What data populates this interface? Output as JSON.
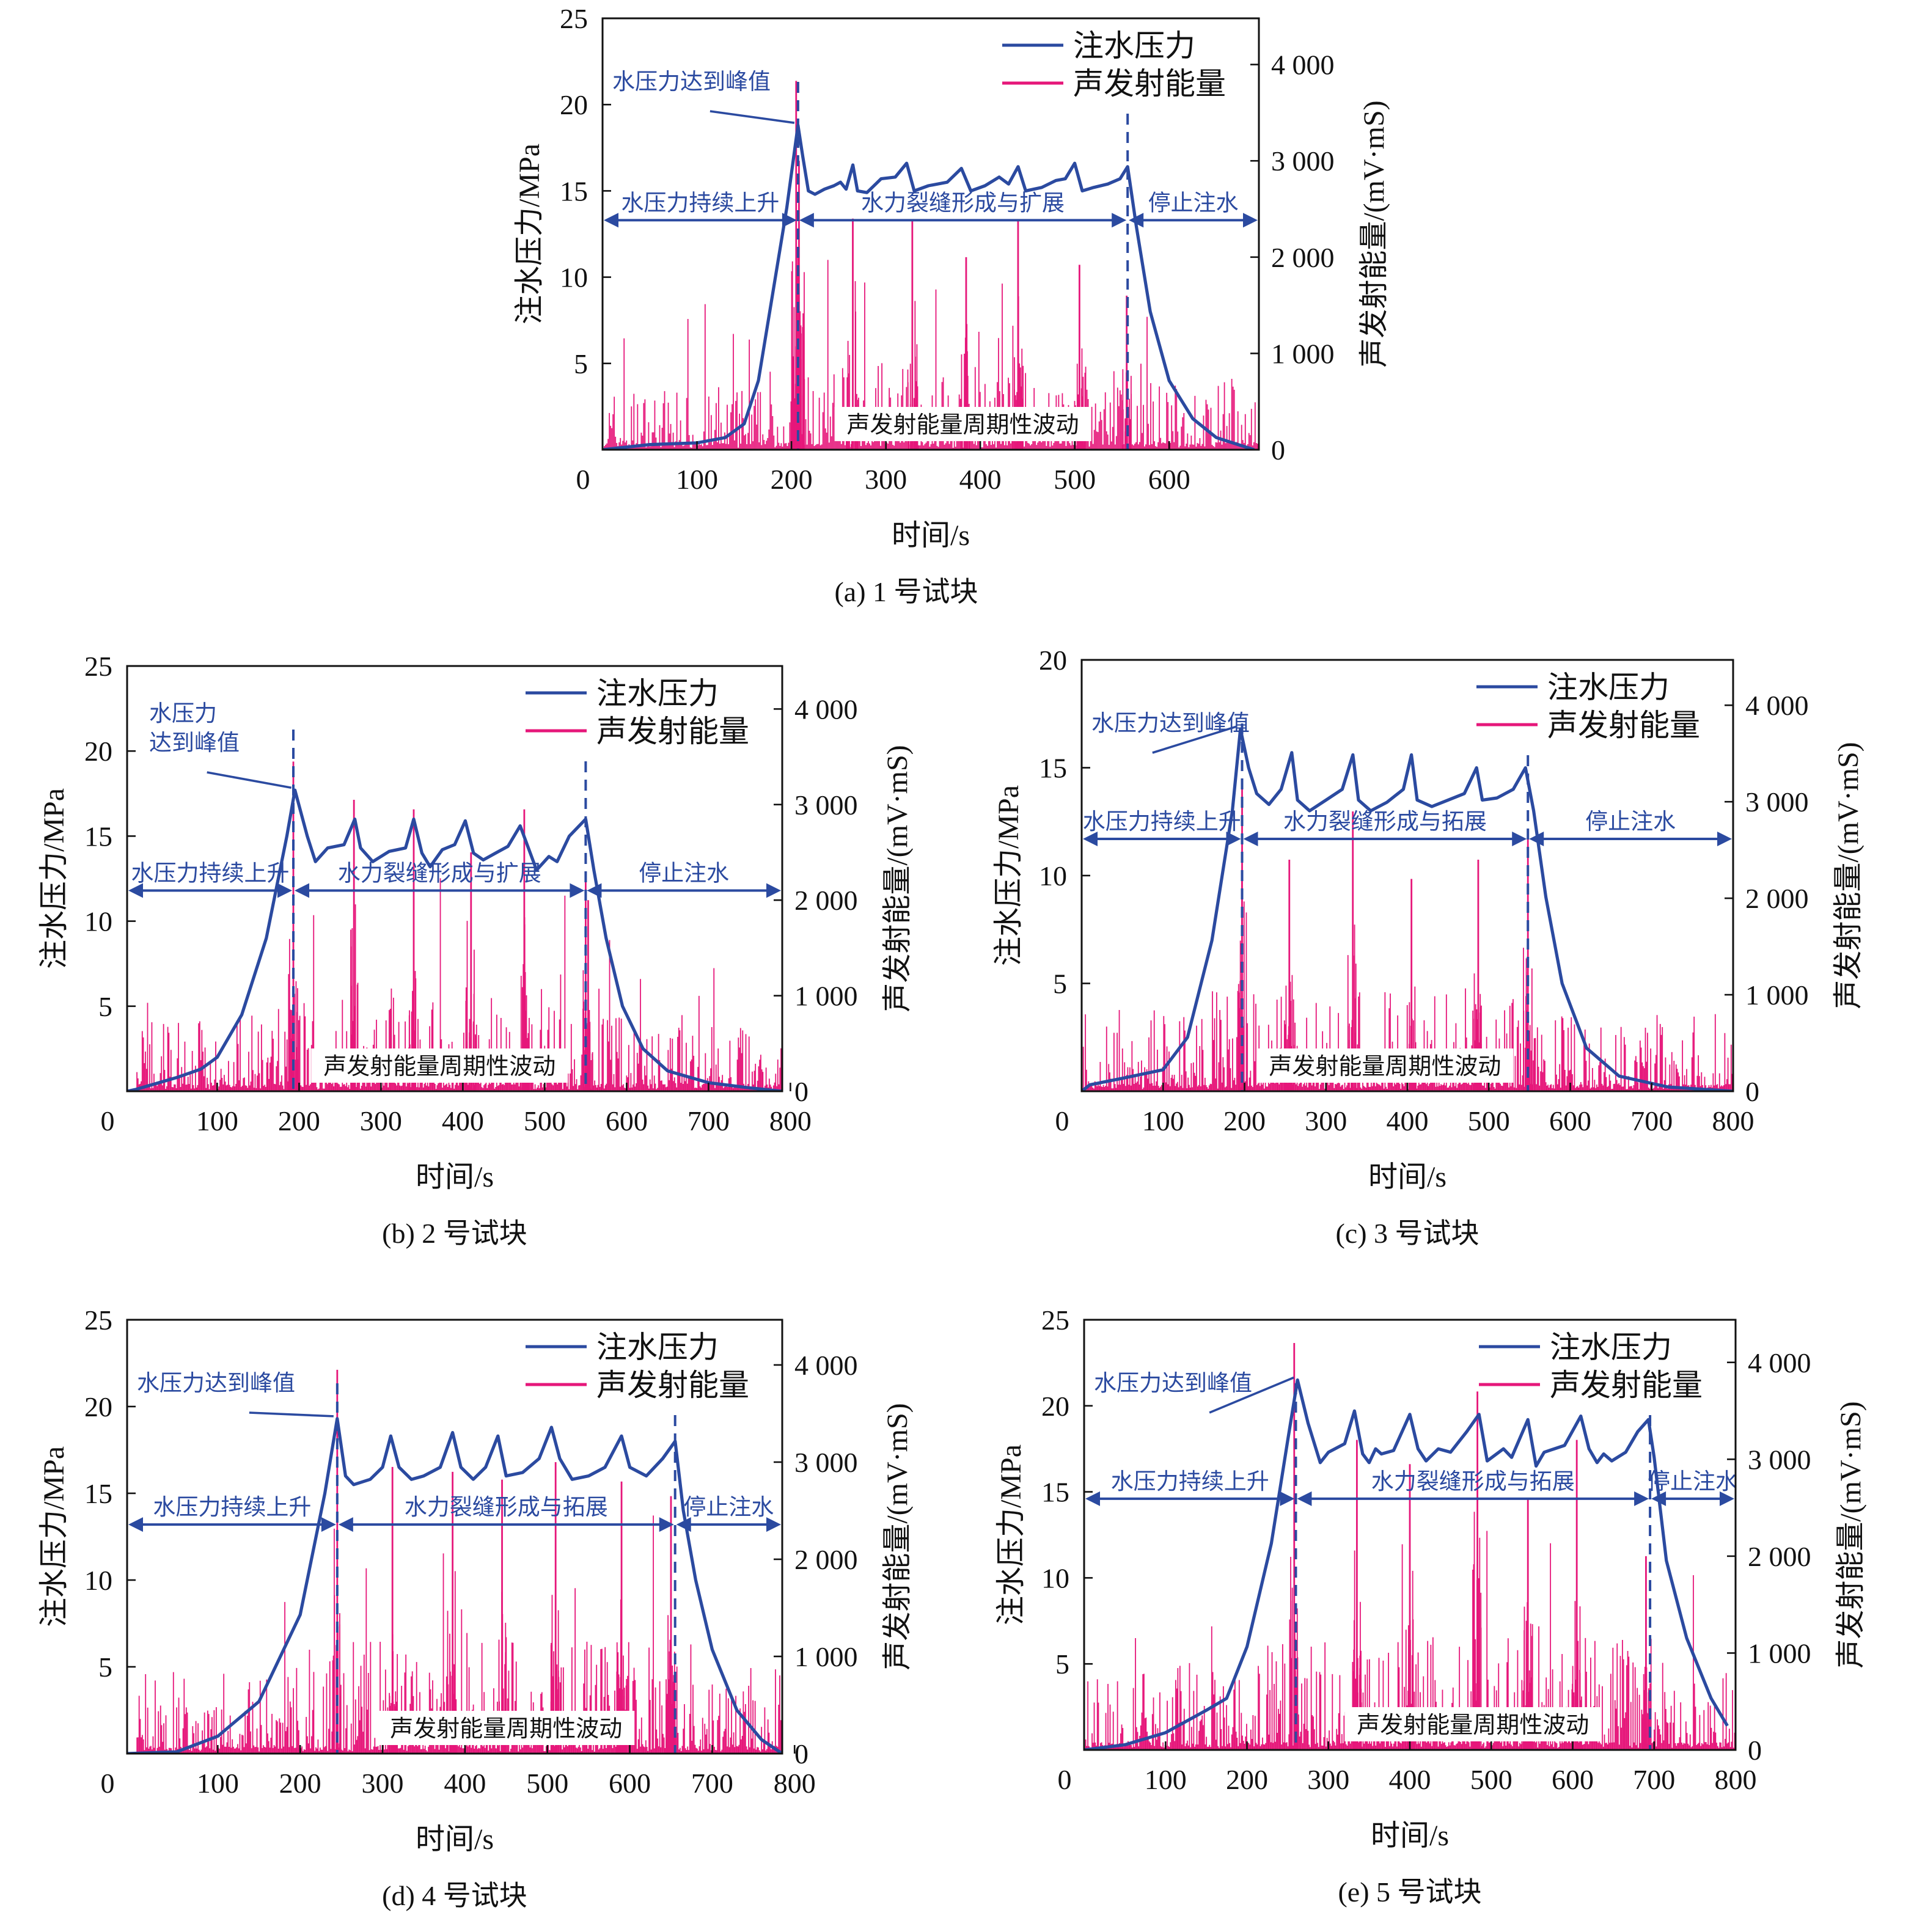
{
  "colors": {
    "pressure": "#2b4aa0",
    "energy": "#e6177a",
    "axis": "#111111"
  },
  "legend": {
    "pressure": "注水压力",
    "energy": "声发射能量"
  },
  "common": {
    "xlabel": "时间/s",
    "ylabel_left": "注水压力/MPa",
    "ylabel_right": "声发射能量/(mV·mS)",
    "band_label": "声发射能量周期性波动",
    "phase_stop": "停止注水",
    "phase_rise": "水压力持续上升"
  },
  "chart_data": [
    {
      "type": "line+bar",
      "caption": "(a) 1 号试块",
      "xlim": [
        0,
        695
      ],
      "xticks": [
        0,
        100,
        200,
        300,
        400,
        500,
        600
      ],
      "ylim_left": [
        0,
        25
      ],
      "yticks_left": [
        5,
        10,
        15,
        20,
        25
      ],
      "ylim_right": [
        0,
        4480
      ],
      "yticks_right": [
        0,
        1000,
        2000,
        3000,
        4000
      ],
      "yticks_right_labels": [
        "0",
        "1 000",
        "2 000",
        "3 000",
        "4 000"
      ],
      "peak_label": "水压力达到峰值",
      "phase_frac": "水力裂缝形成与扩展",
      "phase_arrow_level": 13.3,
      "phase_boundaries": [
        207,
        556
      ],
      "pressure": [
        [
          0,
          0
        ],
        [
          50,
          0.3
        ],
        [
          100,
          0.4
        ],
        [
          130,
          0.7
        ],
        [
          150,
          1.5
        ],
        [
          165,
          4
        ],
        [
          180,
          9
        ],
        [
          195,
          14
        ],
        [
          207,
          18.8
        ],
        [
          212,
          17
        ],
        [
          218,
          15
        ],
        [
          225,
          14.8
        ],
        [
          235,
          15.1
        ],
        [
          245,
          15.3
        ],
        [
          252,
          15.5
        ],
        [
          258,
          15.1
        ],
        [
          265,
          16.5
        ],
        [
          270,
          15
        ],
        [
          280,
          14.9
        ],
        [
          295,
          15.7
        ],
        [
          310,
          15.8
        ],
        [
          322,
          16.6
        ],
        [
          330,
          15
        ],
        [
          345,
          15.3
        ],
        [
          365,
          15.5
        ],
        [
          380,
          16.3
        ],
        [
          390,
          15
        ],
        [
          405,
          15.3
        ],
        [
          420,
          15.8
        ],
        [
          430,
          15.4
        ],
        [
          440,
          16.4
        ],
        [
          448,
          15
        ],
        [
          465,
          15.2
        ],
        [
          480,
          15.6
        ],
        [
          490,
          15.7
        ],
        [
          500,
          16.6
        ],
        [
          508,
          15
        ],
        [
          520,
          15.2
        ],
        [
          535,
          15.4
        ],
        [
          548,
          15.7
        ],
        [
          556,
          16.4
        ],
        [
          565,
          13
        ],
        [
          580,
          8
        ],
        [
          600,
          4
        ],
        [
          625,
          1.8
        ],
        [
          650,
          0.7
        ],
        [
          690,
          0
        ]
      ],
      "energy_peaks": [
        [
          205,
          3830
        ],
        [
          208,
          3000
        ],
        [
          265,
          2400
        ],
        [
          328,
          2380
        ],
        [
          385,
          2000
        ],
        [
          440,
          2380
        ],
        [
          505,
          1920
        ],
        [
          555,
          1600
        ]
      ],
      "energy_background_max": 700
    },
    {
      "type": "line+bar",
      "caption": "(b) 2 号试块",
      "xlim": [
        -10,
        790
      ],
      "xticks": [
        0,
        100,
        200,
        300,
        400,
        500,
        600,
        700,
        800
      ],
      "ylim_left": [
        0,
        25
      ],
      "yticks_left": [
        5,
        10,
        15,
        20,
        25
      ],
      "ylim_right": [
        0,
        4450
      ],
      "yticks_right": [
        0,
        1000,
        2000,
        3000,
        4000
      ],
      "yticks_right_labels": [
        "0",
        "1 000",
        "2 000",
        "3 000",
        "4 000"
      ],
      "peak_label": "水压力\n达到峰值",
      "phase_frac": "水力裂缝形成与扩展",
      "phase_arrow_level": 11.8,
      "phase_boundaries": [
        193,
        550
      ],
      "pressure": [
        [
          -10,
          0
        ],
        [
          0,
          0.1
        ],
        [
          50,
          0.8
        ],
        [
          80,
          1.3
        ],
        [
          100,
          2
        ],
        [
          130,
          4.5
        ],
        [
          160,
          9
        ],
        [
          185,
          15
        ],
        [
          195,
          17.7
        ],
        [
          210,
          15
        ],
        [
          220,
          13.5
        ],
        [
          235,
          14.3
        ],
        [
          255,
          14.5
        ],
        [
          268,
          16
        ],
        [
          275,
          14.3
        ],
        [
          290,
          13.5
        ],
        [
          310,
          14.1
        ],
        [
          330,
          14.3
        ],
        [
          340,
          16
        ],
        [
          350,
          14
        ],
        [
          360,
          13.2
        ],
        [
          375,
          14.2
        ],
        [
          390,
          14.5
        ],
        [
          403,
          15.9
        ],
        [
          413,
          14
        ],
        [
          425,
          13.6
        ],
        [
          440,
          14
        ],
        [
          455,
          14.4
        ],
        [
          470,
          15.6
        ],
        [
          480,
          14.3
        ],
        [
          490,
          13
        ],
        [
          505,
          13.8
        ],
        [
          515,
          13.5
        ],
        [
          530,
          15
        ],
        [
          550,
          16
        ],
        [
          560,
          13
        ],
        [
          575,
          9
        ],
        [
          595,
          5
        ],
        [
          620,
          2.5
        ],
        [
          650,
          1.2
        ],
        [
          700,
          0.5
        ],
        [
          750,
          0.2
        ],
        [
          790,
          0
        ]
      ],
      "energy_peaks": [
        [
          193,
          3450
        ],
        [
          267,
          3050
        ],
        [
          340,
          2950
        ],
        [
          410,
          2500
        ],
        [
          475,
          2950
        ],
        [
          550,
          2300
        ],
        [
          553,
          2000
        ]
      ],
      "energy_background_max": 800
    },
    {
      "type": "line+bar",
      "caption": "(c) 3 号试块",
      "xlim": [
        0,
        800
      ],
      "xticks": [
        0,
        100,
        200,
        300,
        400,
        500,
        600,
        700,
        800
      ],
      "ylim_left": [
        0,
        20
      ],
      "yticks_left": [
        5,
        10,
        15,
        20
      ],
      "ylim_right": [
        0,
        4470
      ],
      "yticks_right": [
        0,
        1000,
        2000,
        3000,
        4000
      ],
      "yticks_right_labels": [
        "0",
        "1 000",
        "2 000",
        "3 000",
        "4 000"
      ],
      "peak_label": "水压力达到峰值",
      "phase_frac": "水力裂缝形成与拓展",
      "phase_arrow_level": 11.7,
      "phase_boundaries": [
        197,
        548
      ],
      "pressure": [
        [
          0,
          0
        ],
        [
          10,
          0.3
        ],
        [
          50,
          0.6
        ],
        [
          100,
          1
        ],
        [
          130,
          2.5
        ],
        [
          160,
          7
        ],
        [
          185,
          13
        ],
        [
          195,
          16.8
        ],
        [
          205,
          15
        ],
        [
          215,
          13.8
        ],
        [
          230,
          13.3
        ],
        [
          245,
          14
        ],
        [
          258,
          15.7
        ],
        [
          265,
          13.5
        ],
        [
          280,
          13
        ],
        [
          300,
          13.5
        ],
        [
          320,
          14
        ],
        [
          333,
          15.6
        ],
        [
          340,
          13.5
        ],
        [
          355,
          13
        ],
        [
          375,
          13.4
        ],
        [
          395,
          14
        ],
        [
          405,
          15.6
        ],
        [
          412,
          13.5
        ],
        [
          430,
          13.2
        ],
        [
          450,
          13.5
        ],
        [
          470,
          13.8
        ],
        [
          485,
          15
        ],
        [
          492,
          13.5
        ],
        [
          510,
          13.6
        ],
        [
          530,
          14
        ],
        [
          545,
          15
        ],
        [
          555,
          13
        ],
        [
          570,
          9
        ],
        [
          590,
          5
        ],
        [
          620,
          2
        ],
        [
          660,
          0.7
        ],
        [
          720,
          0.2
        ],
        [
          800,
          0
        ]
      ],
      "energy_peaks": [
        [
          197,
          3200
        ],
        [
          255,
          2400
        ],
        [
          333,
          2900
        ],
        [
          405,
          2200
        ],
        [
          487,
          2400
        ],
        [
          548,
          2700
        ]
      ],
      "energy_background_max": 800
    },
    {
      "type": "line+bar",
      "caption": "(d) 4 号试块",
      "xlim": [
        -10,
        785
      ],
      "xticks": [
        0,
        100,
        200,
        300,
        400,
        500,
        600,
        700,
        800
      ],
      "ylim_left": [
        0,
        25
      ],
      "yticks_left": [
        5,
        10,
        15,
        20,
        25
      ],
      "ylim_right": [
        0,
        4465
      ],
      "yticks_right": [
        0,
        1000,
        2000,
        3000,
        4000
      ],
      "yticks_right_labels": [
        "0",
        "1 000",
        "2 000",
        "3 000",
        "4 000"
      ],
      "peak_label": "水压力达到峰值",
      "phase_frac": "水力裂缝形成与拓展",
      "phase_arrow_level": 13.2,
      "phase_boundaries": [
        245,
        655
      ],
      "pressure": [
        [
          -10,
          0
        ],
        [
          50,
          0.1
        ],
        [
          100,
          1
        ],
        [
          150,
          3
        ],
        [
          200,
          8
        ],
        [
          230,
          15
        ],
        [
          245,
          19.3
        ],
        [
          255,
          16
        ],
        [
          265,
          15.5
        ],
        [
          285,
          15.8
        ],
        [
          300,
          16.5
        ],
        [
          310,
          18.3
        ],
        [
          320,
          16.5
        ],
        [
          335,
          15.8
        ],
        [
          350,
          16
        ],
        [
          370,
          16.5
        ],
        [
          385,
          18.5
        ],
        [
          395,
          16.5
        ],
        [
          410,
          15.8
        ],
        [
          425,
          16.5
        ],
        [
          440,
          18.3
        ],
        [
          450,
          16
        ],
        [
          470,
          16.2
        ],
        [
          490,
          17
        ],
        [
          505,
          18.8
        ],
        [
          515,
          17
        ],
        [
          530,
          15.8
        ],
        [
          550,
          16
        ],
        [
          570,
          16.5
        ],
        [
          590,
          18.3
        ],
        [
          600,
          16.5
        ],
        [
          620,
          16
        ],
        [
          640,
          17
        ],
        [
          655,
          18
        ],
        [
          665,
          14
        ],
        [
          680,
          10
        ],
        [
          700,
          6
        ],
        [
          730,
          2.5
        ],
        [
          760,
          0.8
        ],
        [
          785,
          0
        ]
      ],
      "energy_peaks": [
        [
          245,
          3950
        ],
        [
          312,
          2950
        ],
        [
          385,
          2900
        ],
        [
          445,
          2820
        ],
        [
          510,
          3000
        ],
        [
          590,
          2800
        ],
        [
          650,
          2650
        ]
      ],
      "energy_background_max": 900
    },
    {
      "type": "line+bar",
      "caption": "(e) 5 号试块",
      "xlim": [
        0,
        800
      ],
      "xticks": [
        0,
        100,
        200,
        300,
        400,
        500,
        600,
        700,
        800
      ],
      "ylim_left": [
        0,
        25
      ],
      "yticks_left": [
        5,
        10,
        15,
        20,
        25
      ],
      "ylim_right": [
        0,
        4440
      ],
      "yticks_right": [
        0,
        1000,
        2000,
        3000,
        4000
      ],
      "yticks_right_labels": [
        "0",
        "1 000",
        "2 000",
        "3 000",
        "4 000"
      ],
      "peak_label": "水压力达到峰值",
      "phase_frac": "水力裂缝形成与拓展",
      "phase_arrow_level": 14.6,
      "phase_boundaries": [
        260,
        695
      ],
      "pressure": [
        [
          0,
          0
        ],
        [
          50,
          0.3
        ],
        [
          100,
          1
        ],
        [
          150,
          2.3
        ],
        [
          175,
          3
        ],
        [
          200,
          6
        ],
        [
          230,
          12
        ],
        [
          250,
          18
        ],
        [
          262,
          21.5
        ],
        [
          275,
          19
        ],
        [
          290,
          16.7
        ],
        [
          300,
          17.3
        ],
        [
          320,
          17.8
        ],
        [
          332,
          19.7
        ],
        [
          342,
          17.2
        ],
        [
          350,
          16.7
        ],
        [
          358,
          17.5
        ],
        [
          365,
          17.2
        ],
        [
          380,
          17.4
        ],
        [
          400,
          19.5
        ],
        [
          410,
          17.5
        ],
        [
          420,
          16.8
        ],
        [
          435,
          17.5
        ],
        [
          450,
          17.3
        ],
        [
          470,
          18.5
        ],
        [
          485,
          19.5
        ],
        [
          495,
          16.8
        ],
        [
          515,
          17.5
        ],
        [
          525,
          17
        ],
        [
          545,
          19.2
        ],
        [
          555,
          16.5
        ],
        [
          565,
          17.3
        ],
        [
          590,
          17.7
        ],
        [
          610,
          19.4
        ],
        [
          620,
          17.5
        ],
        [
          630,
          16.7
        ],
        [
          638,
          17.2
        ],
        [
          648,
          16.8
        ],
        [
          665,
          17.3
        ],
        [
          680,
          18.5
        ],
        [
          693,
          19.2
        ],
        [
          700,
          17
        ],
        [
          715,
          11
        ],
        [
          740,
          6.5
        ],
        [
          770,
          3
        ],
        [
          790,
          1.4
        ]
      ],
      "energy_peaks": [
        [
          258,
          4200
        ],
        [
          335,
          3200
        ],
        [
          400,
          2950
        ],
        [
          483,
          3700
        ],
        [
          545,
          2600
        ],
        [
          605,
          3200
        ],
        [
          690,
          2000
        ]
      ],
      "energy_background_max": 900
    }
  ]
}
